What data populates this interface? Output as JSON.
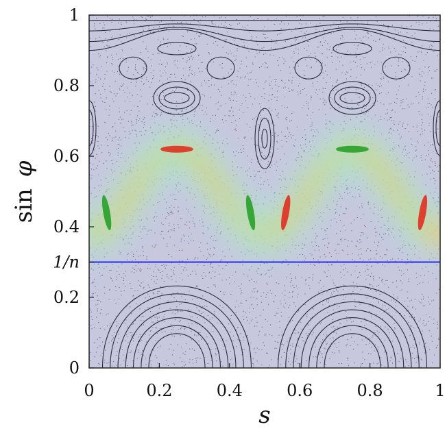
{
  "chart_data": {
    "type": "scatter",
    "title": "",
    "xlabel": "s",
    "ylabel": "sin φ",
    "ylabel_parts": {
      "fn": "sin",
      "var": "φ"
    },
    "xlim": [
      0,
      1
    ],
    "ylim": [
      0,
      1
    ],
    "x_ticks": [
      {
        "value": 0,
        "label": "0"
      },
      {
        "value": 0.2,
        "label": "0.2"
      },
      {
        "value": 0.4,
        "label": "0.4"
      },
      {
        "value": 0.6,
        "label": "0.6"
      },
      {
        "value": 0.8,
        "label": "0.8"
      },
      {
        "value": 1,
        "label": "1"
      }
    ],
    "y_ticks": [
      {
        "value": 0,
        "label": "0"
      },
      {
        "value": 0.2,
        "label": "0.2"
      },
      {
        "value": 0.3,
        "label": "1/n"
      },
      {
        "value": 0.4,
        "label": "0.4"
      },
      {
        "value": 0.6,
        "label": "0.6"
      },
      {
        "value": 0.8,
        "label": "0.8"
      },
      {
        "value": 1,
        "label": "1"
      }
    ],
    "reference_line": {
      "y": 0.3,
      "color": "#2a2aee"
    },
    "heat_peaks": [
      {
        "x": 0.25,
        "y": 0.62,
        "color": "#e03020"
      },
      {
        "x": 0.75,
        "y": 0.62,
        "color": "#28a028"
      },
      {
        "x": 0.05,
        "y": 0.44,
        "color": "#28a028"
      },
      {
        "x": 0.46,
        "y": 0.44,
        "color": "#28a028"
      },
      {
        "x": 0.56,
        "y": 0.44,
        "color": "#e03020"
      },
      {
        "x": 0.95,
        "y": 0.44,
        "color": "#e03020"
      }
    ],
    "background_color": "#c7c8de",
    "grid": false
  }
}
